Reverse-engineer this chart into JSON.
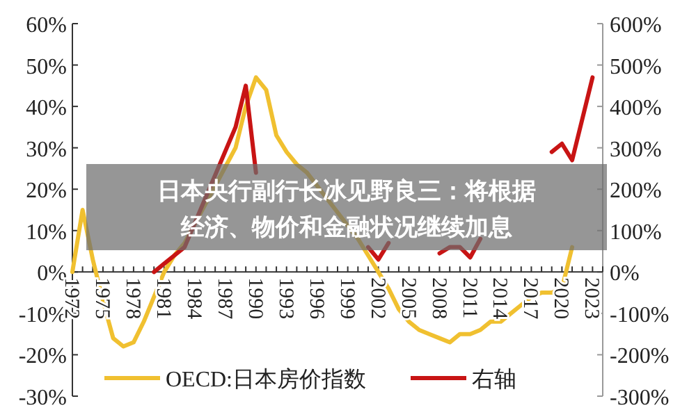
{
  "chart_data": {
    "type": "line",
    "title": "日本央行副行长冰见野良三：将根据经济、物价和金融状况继续加息",
    "x": [
      1972,
      1973,
      1974,
      1975,
      1976,
      1977,
      1978,
      1979,
      1980,
      1981,
      1982,
      1983,
      1988,
      1989,
      1990,
      1991,
      1992,
      1993,
      1994,
      1995,
      2000,
      2001,
      2002,
      2003,
      2004,
      2005,
      2006,
      2007,
      2008,
      2009,
      2010,
      2011,
      2012,
      2013,
      2014,
      2015,
      2016,
      2017,
      2018,
      2019,
      2020,
      2021,
      2022,
      2023
    ],
    "series": [
      {
        "name": "OECD:日本房价指数",
        "color": "#f0c030",
        "values": [
          0,
          15,
          3,
          -7,
          -16,
          -18,
          -17,
          -12,
          -6,
          0,
          4,
          7,
          30,
          40,
          47,
          44,
          33,
          29,
          26,
          24,
          8,
          4,
          0,
          -4,
          -9,
          -12,
          -14,
          -15,
          -16,
          -17,
          -15,
          -15,
          -14,
          -12,
          -12,
          -10,
          -8,
          -6,
          -5,
          -5,
          -4,
          6,
          null,
          null
        ]
      },
      {
        "name": "右轴",
        "color": "#c81414",
        "axis": "y2",
        "values": [
          null,
          null,
          null,
          null,
          null,
          null,
          null,
          null,
          0,
          20,
          40,
          60,
          350,
          450,
          240,
          null,
          null,
          null,
          null,
          null,
          null,
          60,
          30,
          70,
          null,
          null,
          null,
          null,
          45,
          60,
          60,
          35,
          80,
          null,
          null,
          null,
          null,
          null,
          null,
          290,
          310,
          270,
          370,
          470
        ]
      }
    ],
    "xlim": [
      1972,
      2024
    ],
    "ylim": [
      -30,
      60
    ],
    "y2lim": [
      -300,
      600
    ],
    "xticks": [
      1972,
      1975,
      1978,
      1981,
      1984,
      1987,
      1990,
      1993,
      1996,
      1999,
      2002,
      2005,
      2008,
      2011,
      2014,
      2017,
      2020,
      2023
    ],
    "yticks": [
      {
        "value": -30,
        "label": "-30%"
      },
      {
        "value": -20,
        "label": "-20%"
      },
      {
        "value": -10,
        "label": "-10%"
      },
      {
        "value": 0,
        "label": "0%"
      },
      {
        "value": 10,
        "label": "10%"
      },
      {
        "value": 20,
        "label": "20%"
      },
      {
        "value": 30,
        "label": "30%"
      },
      {
        "value": 40,
        "label": "40%"
      },
      {
        "value": 50,
        "label": "50%"
      },
      {
        "value": 60,
        "label": "60%"
      }
    ],
    "y2ticks": [
      {
        "value": -300,
        "label": "-300%"
      },
      {
        "value": -200,
        "label": "-200%"
      },
      {
        "value": -100,
        "label": "-100%"
      },
      {
        "value": 0,
        "label": "0%"
      },
      {
        "value": 100,
        "label": "100%"
      },
      {
        "value": 200,
        "label": "200%"
      },
      {
        "value": 300,
        "label": "300%"
      },
      {
        "value": 400,
        "label": "400%"
      },
      {
        "value": 500,
        "label": "500%"
      },
      {
        "value": 600,
        "label": "600%"
      }
    ],
    "legend": "bottom",
    "grid": false,
    "marker": "none"
  }
}
